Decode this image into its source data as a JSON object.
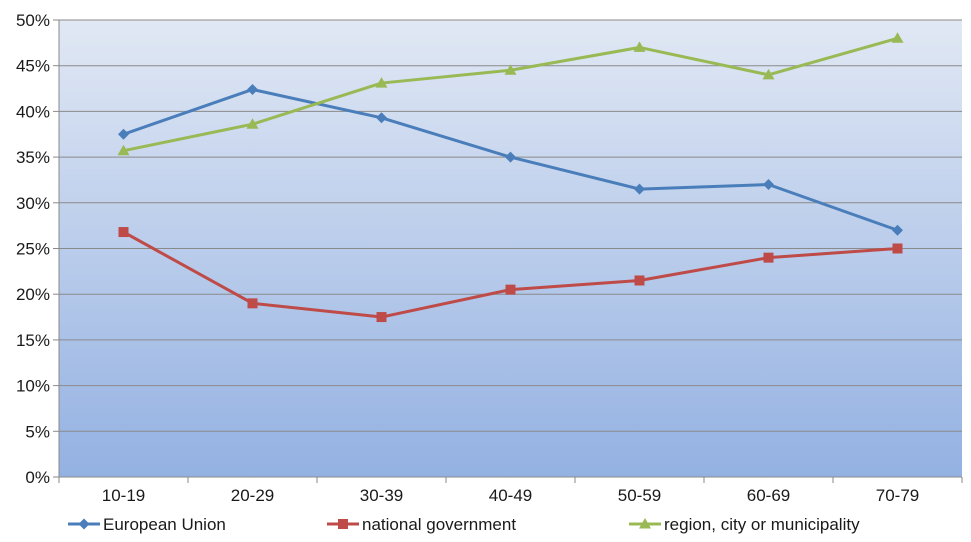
{
  "chart_data": {
    "type": "line",
    "title": "",
    "xlabel": "",
    "ylabel": "",
    "categories": [
      "10-19",
      "20-29",
      "30-39",
      "40-49",
      "50-59",
      "60-69",
      "70-79"
    ],
    "ylim": [
      0,
      50
    ],
    "y_ticks": [
      0,
      5,
      10,
      15,
      20,
      25,
      30,
      35,
      40,
      45,
      50
    ],
    "y_tick_labels": [
      "0%",
      "5%",
      "10%",
      "15%",
      "20%",
      "25%",
      "30%",
      "35%",
      "40%",
      "45%",
      "50%"
    ],
    "grid": true,
    "legend_position": "bottom",
    "background": {
      "top": "#e1e8f4",
      "bottom": "#93b1e2"
    },
    "series": [
      {
        "name": "European Union",
        "color": "#4a7ebb",
        "marker": "diamond",
        "values": [
          37.5,
          42.4,
          39.3,
          35.0,
          31.5,
          32.0,
          27.0
        ]
      },
      {
        "name": "national government",
        "color": "#be4b48",
        "marker": "square",
        "values": [
          26.8,
          19.0,
          17.5,
          20.5,
          21.5,
          24.0,
          25.0
        ]
      },
      {
        "name": "region, city or municipality",
        "color": "#98b954",
        "marker": "triangle",
        "values": [
          35.7,
          38.6,
          43.1,
          44.5,
          47.0,
          44.0,
          48.0
        ]
      }
    ]
  }
}
